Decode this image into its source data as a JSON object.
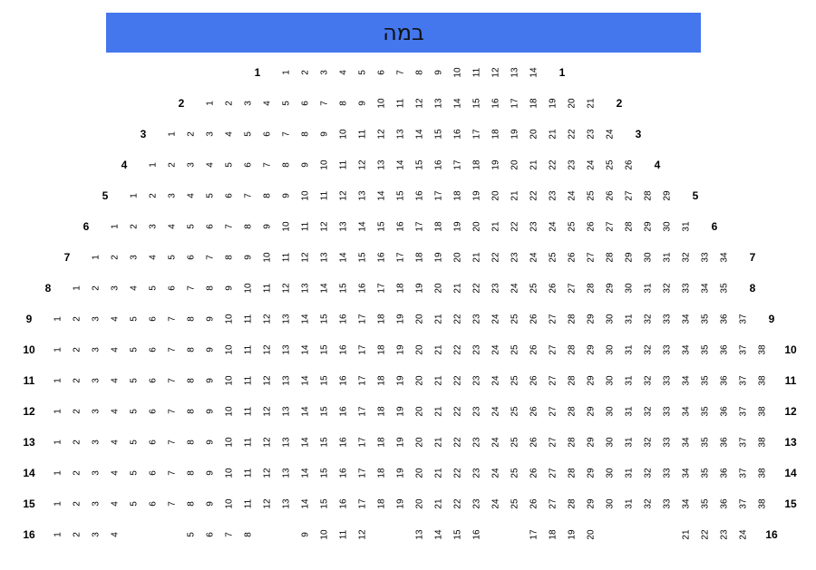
{
  "stage": {
    "label": "במה",
    "color": "#4477ee"
  },
  "rows": [
    {
      "label": "1",
      "start_col": 12,
      "seats": [
        1,
        2,
        3,
        4,
        5,
        6,
        7,
        8,
        9,
        10,
        11,
        12,
        13,
        14
      ]
    },
    {
      "label": "2",
      "start_col": 8,
      "seats": [
        1,
        2,
        3,
        4,
        5,
        6,
        7,
        8,
        9,
        10,
        11,
        12,
        13,
        14,
        15,
        16,
        17,
        18,
        19,
        20,
        21
      ]
    },
    {
      "label": "3",
      "start_col": 6,
      "seats": [
        1,
        2,
        3,
        4,
        5,
        6,
        7,
        8,
        9,
        10,
        11,
        12,
        13,
        14,
        15,
        16,
        17,
        18,
        19,
        20,
        21,
        22,
        23,
        24
      ]
    },
    {
      "label": "4",
      "start_col": 5,
      "seats": [
        1,
        2,
        3,
        4,
        5,
        6,
        7,
        8,
        9,
        10,
        11,
        12,
        13,
        14,
        15,
        16,
        17,
        18,
        19,
        20,
        21,
        22,
        23,
        24,
        25,
        26
      ]
    },
    {
      "label": "5",
      "start_col": 4,
      "seats": [
        1,
        2,
        3,
        4,
        5,
        6,
        7,
        8,
        9,
        10,
        11,
        12,
        13,
        14,
        15,
        16,
        17,
        18,
        19,
        20,
        21,
        22,
        23,
        24,
        25,
        26,
        27,
        28,
        29
      ]
    },
    {
      "label": "6",
      "start_col": 3,
      "seats": [
        1,
        2,
        3,
        4,
        5,
        6,
        7,
        8,
        9,
        10,
        11,
        12,
        13,
        14,
        15,
        16,
        17,
        18,
        19,
        20,
        21,
        22,
        23,
        24,
        25,
        26,
        27,
        28,
        29,
        30,
        31
      ]
    },
    {
      "label": "7",
      "start_col": 2,
      "seats": [
        1,
        2,
        3,
        4,
        5,
        6,
        7,
        8,
        9,
        10,
        11,
        12,
        13,
        14,
        15,
        16,
        17,
        18,
        19,
        20,
        21,
        22,
        23,
        24,
        25,
        26,
        27,
        28,
        29,
        30,
        31,
        32,
        33,
        34
      ]
    },
    {
      "label": "8",
      "start_col": 1,
      "seats": [
        1,
        2,
        3,
        4,
        5,
        6,
        7,
        8,
        9,
        10,
        11,
        12,
        13,
        14,
        15,
        16,
        17,
        18,
        19,
        20,
        21,
        22,
        23,
        24,
        25,
        26,
        27,
        28,
        29,
        30,
        31,
        32,
        33,
        34,
        35
      ]
    },
    {
      "label": "9",
      "start_col": 0,
      "seats": [
        1,
        2,
        3,
        4,
        5,
        6,
        7,
        8,
        9,
        10,
        11,
        12,
        13,
        14,
        15,
        16,
        17,
        18,
        19,
        20,
        21,
        22,
        23,
        24,
        25,
        26,
        27,
        28,
        29,
        30,
        31,
        32,
        33,
        34,
        35,
        36,
        37
      ]
    },
    {
      "label": "10",
      "start_col": 0,
      "seats": [
        1,
        2,
        3,
        4,
        5,
        6,
        7,
        8,
        9,
        10,
        11,
        12,
        13,
        14,
        15,
        16,
        17,
        18,
        19,
        20,
        21,
        22,
        23,
        24,
        25,
        26,
        27,
        28,
        29,
        30,
        31,
        32,
        33,
        34,
        35,
        36,
        37,
        38
      ]
    },
    {
      "label": "11",
      "start_col": 0,
      "seats": [
        1,
        2,
        3,
        4,
        5,
        6,
        7,
        8,
        9,
        10,
        11,
        12,
        13,
        14,
        15,
        16,
        17,
        18,
        19,
        20,
        21,
        22,
        23,
        24,
        25,
        26,
        27,
        28,
        29,
        30,
        31,
        32,
        33,
        34,
        35,
        36,
        37,
        38
      ]
    },
    {
      "label": "12",
      "start_col": 0,
      "seats": [
        1,
        2,
        3,
        4,
        5,
        6,
        7,
        8,
        9,
        10,
        11,
        12,
        13,
        14,
        15,
        16,
        17,
        18,
        19,
        20,
        21,
        22,
        23,
        24,
        25,
        26,
        27,
        28,
        29,
        30,
        31,
        32,
        33,
        34,
        35,
        36,
        37,
        38
      ]
    },
    {
      "label": "13",
      "start_col": 0,
      "seats": [
        1,
        2,
        3,
        4,
        5,
        6,
        7,
        8,
        9,
        10,
        11,
        12,
        13,
        14,
        15,
        16,
        17,
        18,
        19,
        20,
        21,
        22,
        23,
        24,
        25,
        26,
        27,
        28,
        29,
        30,
        31,
        32,
        33,
        34,
        35,
        36,
        37,
        38
      ]
    },
    {
      "label": "14",
      "start_col": 0,
      "seats": [
        1,
        2,
        3,
        4,
        5,
        6,
        7,
        8,
        9,
        10,
        11,
        12,
        13,
        14,
        15,
        16,
        17,
        18,
        19,
        20,
        21,
        22,
        23,
        24,
        25,
        26,
        27,
        28,
        29,
        30,
        31,
        32,
        33,
        34,
        35,
        36,
        37,
        38
      ]
    },
    {
      "label": "15",
      "start_col": 0,
      "seats": [
        1,
        2,
        3,
        4,
        5,
        6,
        7,
        8,
        9,
        10,
        11,
        12,
        13,
        14,
        15,
        16,
        17,
        18,
        19,
        20,
        21,
        22,
        23,
        24,
        25,
        26,
        27,
        28,
        29,
        30,
        31,
        32,
        33,
        34,
        35,
        36,
        37,
        38
      ]
    },
    {
      "label": "16",
      "start_col": 0,
      "seats": [
        1,
        2,
        3,
        4,
        null,
        null,
        null,
        5,
        6,
        7,
        8,
        null,
        null,
        9,
        10,
        11,
        12,
        null,
        null,
        13,
        14,
        15,
        16,
        null,
        null,
        17,
        18,
        19,
        20,
        null,
        null,
        null,
        null,
        21,
        22,
        23,
        24
      ]
    }
  ]
}
